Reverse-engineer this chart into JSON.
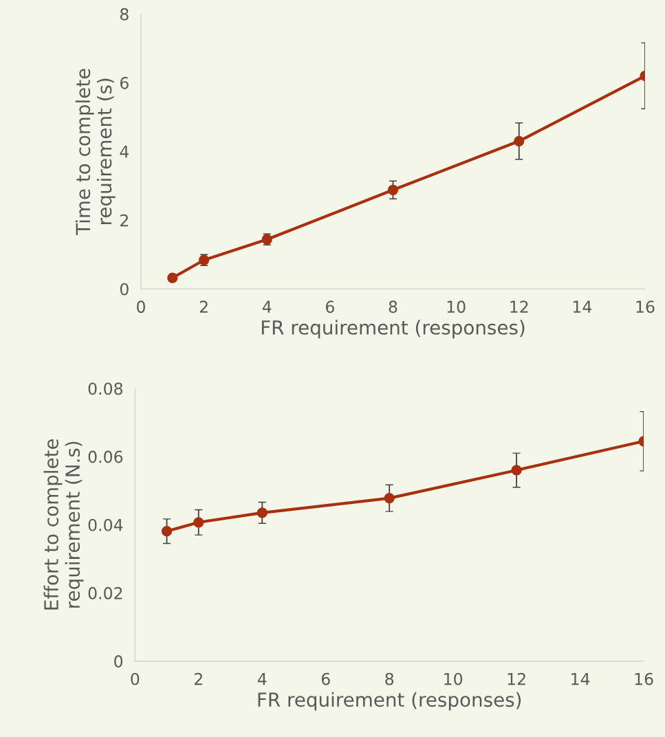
{
  "chart_data": [
    {
      "type": "line",
      "xlabel": "FR requirement (responses)",
      "ylabel": "Time to complete\nrequirement (s)",
      "x": [
        1,
        2,
        4,
        8,
        12,
        16
      ],
      "series": [
        {
          "color": "#a8300f",
          "values": [
            0.32,
            0.84,
            1.44,
            2.88,
            4.3,
            6.2
          ],
          "errors": [
            null,
            0.16,
            0.16,
            0.26,
            0.53,
            0.96
          ]
        }
      ],
      "xlim": [
        0,
        16
      ],
      "xticks": [
        0,
        2,
        4,
        6,
        8,
        10,
        12,
        14,
        16
      ],
      "ylim": [
        0,
        8
      ],
      "yticks": [
        0,
        2,
        4,
        6,
        8
      ],
      "marker": "circle",
      "line_style": "solid",
      "grid": false,
      "legend": false
    },
    {
      "type": "line",
      "xlabel": "FR requirement (responses)",
      "ylabel": "Effort to complete\nrequirement (N.s)",
      "x": [
        1,
        2,
        4,
        8,
        12,
        16
      ],
      "series": [
        {
          "color": "#a8300f",
          "values": [
            0.0381,
            0.0407,
            0.0435,
            0.0478,
            0.056,
            0.0645
          ],
          "errors": [
            0.0036,
            0.0037,
            0.0031,
            0.0039,
            0.005,
            0.0087
          ]
        }
      ],
      "xlim": [
        0,
        16
      ],
      "xticks": [
        0,
        2,
        4,
        6,
        8,
        10,
        12,
        14,
        16
      ],
      "ylim": [
        0,
        0.08
      ],
      "yticks": [
        0,
        0.02,
        0.04,
        0.06,
        0.08
      ],
      "marker": "circle",
      "line_style": "solid",
      "grid": false,
      "legend": false
    }
  ]
}
